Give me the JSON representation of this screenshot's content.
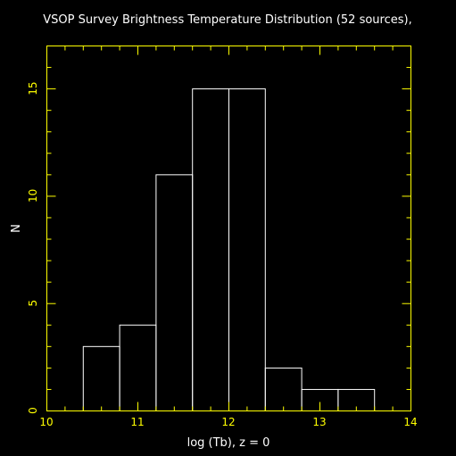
{
  "colors": {
    "background": "#000000",
    "axes": "#ffff00",
    "bars": "#ffffff",
    "text": "#ffffff"
  },
  "chart_data": {
    "type": "bar",
    "title": "VSOP Survey Brightness Temperature Distribution (52 sources),",
    "xlabel": "log (Tb), z = 0",
    "ylabel": "N",
    "xlim": [
      10,
      14
    ],
    "ylim": [
      0,
      17
    ],
    "xticks": [
      10,
      11,
      12,
      13,
      14
    ],
    "yticks": [
      0,
      5,
      10,
      15
    ],
    "x_minor_step": 0.2,
    "y_minor_step": 1,
    "bin_width": 0.4,
    "bins": [
      {
        "x0": 10.4,
        "x1": 10.8,
        "value": 3
      },
      {
        "x0": 10.8,
        "x1": 11.2,
        "value": 4
      },
      {
        "x0": 11.2,
        "x1": 11.6,
        "value": 11
      },
      {
        "x0": 11.6,
        "x1": 12.0,
        "value": 15
      },
      {
        "x0": 12.0,
        "x1": 12.4,
        "value": 15
      },
      {
        "x0": 12.4,
        "x1": 12.8,
        "value": 2
      },
      {
        "x0": 12.8,
        "x1": 13.2,
        "value": 1
      },
      {
        "x0": 13.2,
        "x1": 13.6,
        "value": 1
      }
    ],
    "grid": false,
    "legend": "none"
  }
}
